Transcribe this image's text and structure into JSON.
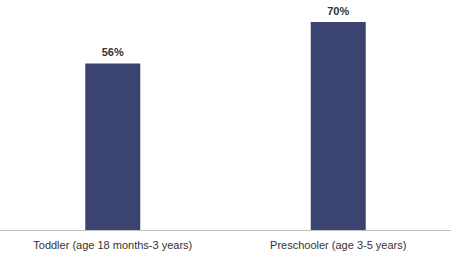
{
  "chart_data": {
    "type": "bar",
    "categories": [
      "Toddler (age 18 months-3 years)",
      "Preschooler (age 3-5 years)"
    ],
    "values": [
      56,
      70
    ],
    "value_labels": [
      "56%",
      "70%"
    ],
    "color": "#3b4470",
    "ylim": [
      0,
      70
    ],
    "yticks": [
      0,
      10,
      20,
      30,
      40,
      50,
      60,
      70
    ],
    "grid": false,
    "data_labels": true,
    "tick_labels": "x"
  }
}
